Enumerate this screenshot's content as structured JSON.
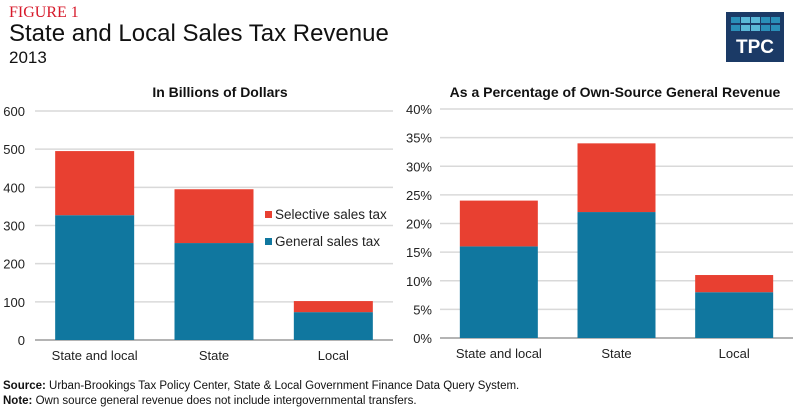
{
  "header": {
    "figure_label": "FIGURE 1",
    "title": "State and Local Sales Tax Revenue",
    "subtitle": "2013",
    "logo_text": "TPC"
  },
  "colors": {
    "selective": "#e84031",
    "general": "#10779f",
    "grid": "#d9d9d9",
    "axis": "#888888",
    "logo_bg": "#1b3a66",
    "figure_label": "#d7192a"
  },
  "chart_data": [
    {
      "type": "bar",
      "stacked": true,
      "title": "In Billions of Dollars",
      "categories": [
        "State and local",
        "State",
        "Local"
      ],
      "series": [
        {
          "name": "General sales tax",
          "values": [
            327,
            254,
            73
          ]
        },
        {
          "name": "Selective sales tax",
          "values": [
            168,
            141,
            29
          ]
        }
      ],
      "xlabel": "",
      "ylabel": "",
      "ylim": [
        0,
        600
      ],
      "yticks": [
        0,
        100,
        200,
        300,
        400,
        500,
        600
      ],
      "ytick_labels": [
        "0",
        "100",
        "200",
        "300",
        "400",
        "500",
        "600"
      ],
      "grid": true,
      "legend": {
        "position": "right",
        "entries": [
          "Selective sales tax",
          "General sales tax"
        ]
      }
    },
    {
      "type": "bar",
      "stacked": true,
      "title": "As a Percentage of Own-Source General Revenue",
      "categories": [
        "State and local",
        "State",
        "Local"
      ],
      "series": [
        {
          "name": "General sales tax",
          "values": [
            16,
            22,
            8
          ]
        },
        {
          "name": "Selective sales tax",
          "values": [
            8,
            12,
            3
          ]
        }
      ],
      "xlabel": "",
      "ylabel": "",
      "ylim": [
        0,
        40
      ],
      "yticks": [
        0,
        5,
        10,
        15,
        20,
        25,
        30,
        35,
        40
      ],
      "ytick_labels": [
        "0%",
        "5%",
        "10%",
        "15%",
        "20%",
        "25%",
        "30%",
        "35%",
        "40%"
      ],
      "grid": true,
      "legend": null
    }
  ],
  "footer": {
    "source_label": "Source:",
    "source_text": " Urban-Brookings Tax Policy Center, State & Local Government Finance Data Query System.",
    "note_label": "Note:",
    "note_text": " Own source general revenue does not include intergovernmental transfers."
  }
}
